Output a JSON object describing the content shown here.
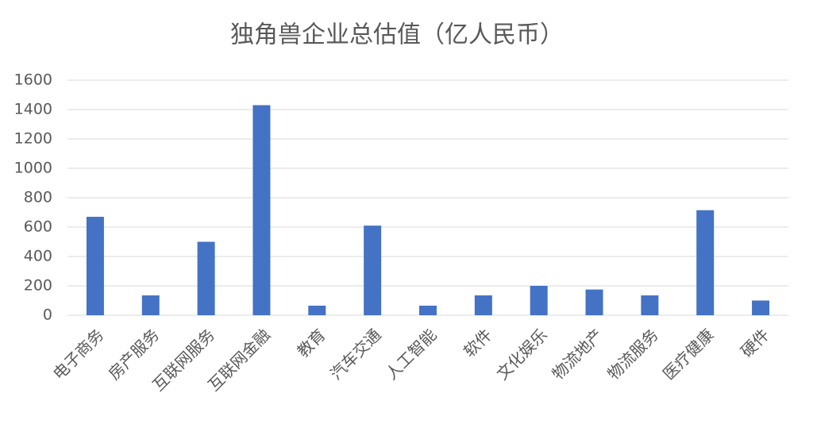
{
  "chart_data": {
    "type": "bar",
    "title": "独角兽企业总估值（亿人民币）",
    "categories": [
      "电子商务",
      "房产服务",
      "互联网服务",
      "互联网金融",
      "教育",
      "汽车交通",
      "人工智能",
      "软件",
      "文化娱乐",
      "物流地产",
      "物流服务",
      "医疗健康",
      "硬件"
    ],
    "values": [
      670,
      135,
      500,
      1430,
      65,
      610,
      65,
      135,
      200,
      175,
      135,
      715,
      100
    ],
    "color": "#4472c4",
    "ylim": [
      0,
      1600
    ],
    "yticks": [
      0,
      200,
      400,
      600,
      800,
      1000,
      1200,
      1400,
      1600
    ],
    "grid": true
  }
}
